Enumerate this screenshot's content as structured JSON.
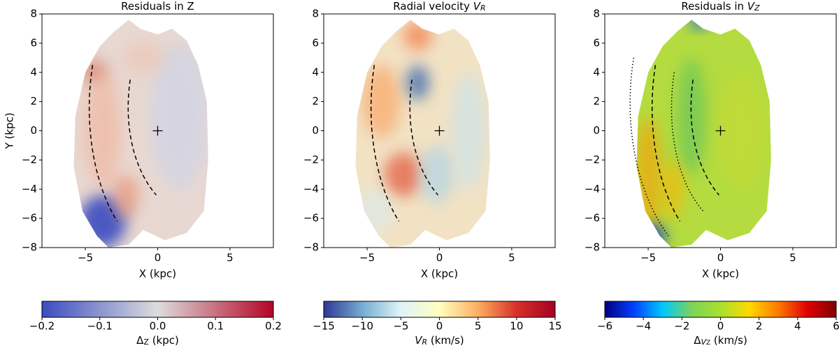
{
  "chart_data": [
    {
      "type": "heatmap",
      "title": {
        "parts": [
          {
            "text": "Residuals in Z"
          }
        ]
      },
      "xlabel": "X (kpc)",
      "ylabel": "Y (kpc)",
      "xlim": [
        -8,
        8
      ],
      "ylim": [
        -8,
        8
      ],
      "xticks": [
        {
          "value": -5,
          "label": "−5"
        },
        0,
        5
      ],
      "yticks": [
        {
          "value": -8,
          "label": "−8"
        },
        {
          "value": -6,
          "label": "−6"
        },
        {
          "value": -4,
          "label": "−4"
        },
        {
          "value": -2,
          "label": "−2"
        },
        0,
        2,
        4,
        6,
        8
      ],
      "colorbar": {
        "label": {
          "parts": [
            {
              "text": "Δ"
            },
            {
              "text": "Z",
              "sub": true
            },
            {
              "text": " (kpc)"
            }
          ]
        },
        "lim": [
          -0.2,
          0.2
        ],
        "ticks": [
          {
            "value": -0.2,
            "label": "−0.2"
          },
          {
            "value": -0.1,
            "label": "−0.1"
          },
          {
            "value": 0,
            "label": "0.0"
          },
          {
            "value": 0.1,
            "label": "0.1"
          },
          {
            "value": 0.2,
            "label": "0.2"
          }
        ],
        "colormap": [
          "#3b4cc0",
          "#dcdddd",
          "#b40426"
        ]
      }
    },
    {
      "type": "heatmap",
      "title": {
        "parts": [
          {
            "text": "Radial velocity "
          },
          {
            "text": "V",
            "italic": true
          },
          {
            "text": "R",
            "sub": true,
            "italic": true
          }
        ]
      },
      "xlabel": "X (kpc)",
      "xlim": [
        -8,
        8
      ],
      "ylim": [
        -8,
        8
      ],
      "xticks": [
        {
          "value": -5,
          "label": "−5"
        },
        0,
        5
      ],
      "yticks": [
        {
          "value": -8,
          "label": "−8"
        },
        {
          "value": -6,
          "label": "−6"
        },
        {
          "value": -4,
          "label": "−4"
        },
        {
          "value": -2,
          "label": "−2"
        },
        0,
        2,
        4,
        6,
        8
      ],
      "colorbar": {
        "label": {
          "parts": [
            {
              "text": "V",
              "italic": true
            },
            {
              "text": "R",
              "sub": true,
              "italic": true
            },
            {
              "text": " (km/s)"
            }
          ]
        },
        "lim": [
          -15,
          15
        ],
        "ticks": [
          {
            "value": -15,
            "label": "−15"
          },
          {
            "value": -10,
            "label": "−10"
          },
          {
            "value": -5,
            "label": "−5"
          },
          0,
          5,
          10,
          15
        ],
        "colormap": [
          "#313695",
          "#74add1",
          "#e0f3f8",
          "#ffffbf",
          "#fdae61",
          "#d73027",
          "#a50026"
        ]
      }
    },
    {
      "type": "heatmap",
      "title": {
        "parts": [
          {
            "text": "Residuals in "
          },
          {
            "text": "V",
            "italic": true
          },
          {
            "text": "Z",
            "sub": true,
            "italic": true
          }
        ]
      },
      "xlabel": "X (kpc)",
      "xlim": [
        -8,
        8
      ],
      "ylim": [
        -8,
        8
      ],
      "xticks": [
        {
          "value": -5,
          "label": "−5"
        },
        0,
        5
      ],
      "yticks": [
        {
          "value": -8,
          "label": "−8"
        },
        {
          "value": -6,
          "label": "−6"
        },
        {
          "value": -4,
          "label": "−4"
        },
        {
          "value": -2,
          "label": "−2"
        },
        0,
        2,
        4,
        6,
        8
      ],
      "colorbar": {
        "label": {
          "parts": [
            {
              "text": "Δ"
            },
            {
              "text": "V",
              "sub": true,
              "italic": true
            },
            {
              "text": "Z",
              "sub": true,
              "small": true
            },
            {
              "text": " (km/s)"
            }
          ]
        },
        "lim": [
          -6,
          6
        ],
        "ticks": [
          {
            "value": -6,
            "label": "−6"
          },
          {
            "value": -4,
            "label": "−4"
          },
          {
            "value": -2,
            "label": "−2"
          },
          0,
          2,
          4,
          6
        ],
        "colormap": [
          "#00007f",
          "#0040ff",
          "#00c8ff",
          "#7cd35a",
          "#a8e030",
          "#ffd800",
          "#ff7a00",
          "#e00000",
          "#7f0000"
        ]
      }
    }
  ]
}
